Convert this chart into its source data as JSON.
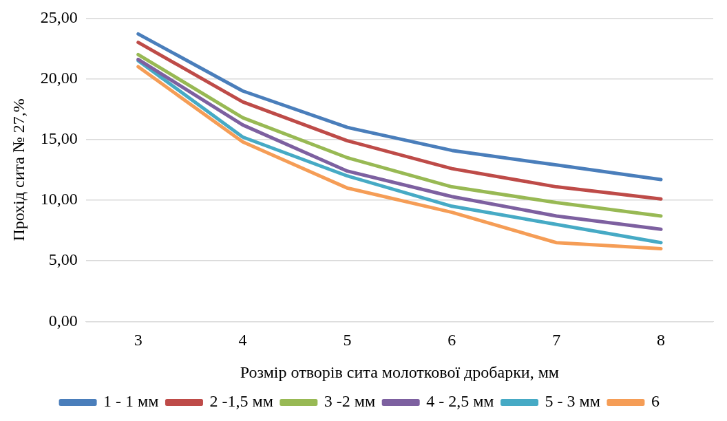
{
  "chart_data": {
    "type": "line",
    "xlabel": "Розмір отворів сита молоткової дробарки, мм",
    "ylabel": "Прохід сита № 27,%",
    "categories": [
      "3",
      "4",
      "5",
      "6",
      "7",
      "8"
    ],
    "series": [
      {
        "name": "1 - 1 мм",
        "color": "#4a7ebb",
        "values": [
          23.7,
          19.0,
          16.0,
          14.1,
          12.9,
          11.7
        ]
      },
      {
        "name": "2 -1,5 мм",
        "color": "#be4b48",
        "values": [
          23.0,
          18.1,
          14.9,
          12.6,
          11.1,
          10.1
        ]
      },
      {
        "name": "3 -2 мм",
        "color": "#98b954",
        "values": [
          22.0,
          16.8,
          13.5,
          11.1,
          9.8,
          8.7
        ]
      },
      {
        "name": "4 - 2,5 мм",
        "color": "#7d60a0",
        "values": [
          21.6,
          16.2,
          12.4,
          10.3,
          8.7,
          7.6
        ]
      },
      {
        "name": "5 - 3 мм",
        "color": "#46aac5",
        "values": [
          21.5,
          15.2,
          12.0,
          9.5,
          8.0,
          6.5
        ]
      },
      {
        "name": "6",
        "color": "#f59d56",
        "values": [
          21.0,
          14.8,
          11.0,
          9.0,
          6.5,
          6.0
        ]
      }
    ],
    "ylim": [
      0,
      25
    ],
    "yticks": [
      {
        "value": 0,
        "label": "0,00"
      },
      {
        "value": 5,
        "label": "5,00"
      },
      {
        "value": 10,
        "label": "10,00"
      },
      {
        "value": 15,
        "label": "15,00"
      },
      {
        "value": 20,
        "label": "20,00"
      },
      {
        "value": 25,
        "label": "25,00"
      }
    ],
    "grid": "y",
    "legend": "bottom",
    "marker": "none",
    "line_style": "solid"
  }
}
